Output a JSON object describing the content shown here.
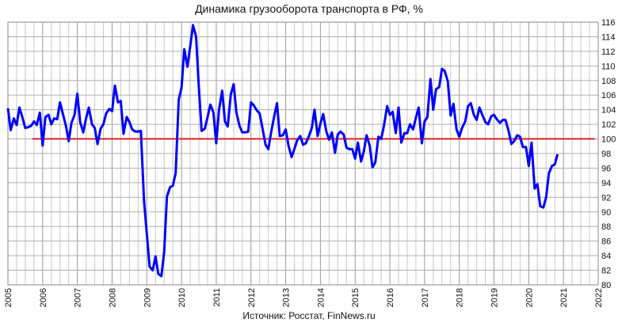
{
  "chart_data": {
    "type": "line",
    "title": "Динамика грузооборота транспорта в РФ, %",
    "source": "Источник: Росстат, FinNews.ru",
    "xlabel": "",
    "ylabel": "",
    "x_ticks": [
      "2005",
      "2006",
      "2007",
      "2008",
      "2009",
      "2010",
      "2011",
      "2012",
      "2013",
      "2014",
      "2015",
      "2016",
      "2017",
      "2018",
      "2019",
      "2020",
      "2021",
      "2022"
    ],
    "y_ticks": [
      80,
      82,
      84,
      86,
      88,
      90,
      92,
      94,
      96,
      98,
      100,
      102,
      104,
      106,
      108,
      110,
      112,
      114,
      116
    ],
    "xlim": [
      2005,
      2022
    ],
    "ylim": [
      80,
      116
    ],
    "grid": true,
    "reference_line": {
      "y": 100,
      "x_start": 2005.7,
      "x_end": 2021.9,
      "color": "#e02020"
    },
    "series": [
      {
        "color": "#0000ff",
        "points": [
          [
            2005.0,
            104.2
          ],
          [
            2005.08,
            101.2
          ],
          [
            2005.17,
            102.8
          ],
          [
            2005.25,
            101.9
          ],
          [
            2005.33,
            104.3
          ],
          [
            2005.42,
            102.9
          ],
          [
            2005.5,
            101.5
          ],
          [
            2005.58,
            101.6
          ],
          [
            2005.67,
            101.8
          ],
          [
            2005.75,
            102.4
          ],
          [
            2005.83,
            101.9
          ],
          [
            2005.92,
            103.6
          ],
          [
            2006.0,
            99.1
          ],
          [
            2006.08,
            103.0
          ],
          [
            2006.17,
            103.3
          ],
          [
            2006.25,
            102.0
          ],
          [
            2006.33,
            102.8
          ],
          [
            2006.42,
            102.7
          ],
          [
            2006.5,
            105.0
          ],
          [
            2006.58,
            103.5
          ],
          [
            2006.67,
            101.8
          ],
          [
            2006.75,
            99.7
          ],
          [
            2006.83,
            102.2
          ],
          [
            2006.92,
            103.3
          ],
          [
            2007.0,
            106.2
          ],
          [
            2007.08,
            102.3
          ],
          [
            2007.17,
            100.9
          ],
          [
            2007.25,
            102.8
          ],
          [
            2007.33,
            104.3
          ],
          [
            2007.42,
            102.0
          ],
          [
            2007.5,
            101.5
          ],
          [
            2007.58,
            99.3
          ],
          [
            2007.67,
            101.4
          ],
          [
            2007.75,
            102.0
          ],
          [
            2007.83,
            103.5
          ],
          [
            2007.92,
            104.1
          ],
          [
            2008.0,
            103.8
          ],
          [
            2008.08,
            107.3
          ],
          [
            2008.17,
            105.0
          ],
          [
            2008.25,
            105.2
          ],
          [
            2008.33,
            100.7
          ],
          [
            2008.42,
            103.0
          ],
          [
            2008.5,
            102.3
          ],
          [
            2008.58,
            101.3
          ],
          [
            2008.67,
            101.0
          ],
          [
            2008.75,
            101.0
          ],
          [
            2008.83,
            101.1
          ],
          [
            2008.92,
            91.5
          ],
          [
            2009.0,
            87.0
          ],
          [
            2009.08,
            82.5
          ],
          [
            2009.17,
            82.0
          ],
          [
            2009.25,
            83.9
          ],
          [
            2009.33,
            81.5
          ],
          [
            2009.42,
            81.2
          ],
          [
            2009.5,
            84.5
          ],
          [
            2009.58,
            92.1
          ],
          [
            2009.67,
            93.4
          ],
          [
            2009.75,
            93.6
          ],
          [
            2009.83,
            95.3
          ],
          [
            2009.92,
            105.4
          ],
          [
            2010.0,
            107.0
          ],
          [
            2010.08,
            112.3
          ],
          [
            2010.17,
            109.9
          ],
          [
            2010.25,
            112.7
          ],
          [
            2010.33,
            115.6
          ],
          [
            2010.42,
            114.0
          ],
          [
            2010.5,
            107.0
          ],
          [
            2010.58,
            101.1
          ],
          [
            2010.67,
            101.4
          ],
          [
            2010.75,
            103.0
          ],
          [
            2010.83,
            104.7
          ],
          [
            2010.92,
            103.6
          ],
          [
            2011.0,
            99.4
          ],
          [
            2011.08,
            104.0
          ],
          [
            2011.17,
            106.6
          ],
          [
            2011.25,
            102.4
          ],
          [
            2011.33,
            101.7
          ],
          [
            2011.42,
            106.1
          ],
          [
            2011.5,
            107.5
          ],
          [
            2011.58,
            103.6
          ],
          [
            2011.67,
            101.8
          ],
          [
            2011.75,
            100.9
          ],
          [
            2011.83,
            100.9
          ],
          [
            2011.92,
            101.0
          ],
          [
            2012.0,
            105.0
          ],
          [
            2012.08,
            104.6
          ],
          [
            2012.17,
            103.9
          ],
          [
            2012.25,
            103.5
          ],
          [
            2012.33,
            101.5
          ],
          [
            2012.42,
            99.2
          ],
          [
            2012.5,
            98.6
          ],
          [
            2012.58,
            100.9
          ],
          [
            2012.67,
            103.1
          ],
          [
            2012.75,
            104.9
          ],
          [
            2012.83,
            100.4
          ],
          [
            2012.92,
            100.5
          ],
          [
            2013.0,
            101.3
          ],
          [
            2013.08,
            99.1
          ],
          [
            2013.17,
            97.5
          ],
          [
            2013.25,
            98.6
          ],
          [
            2013.33,
            99.8
          ],
          [
            2013.42,
            100.4
          ],
          [
            2013.5,
            99.2
          ],
          [
            2013.58,
            99.4
          ],
          [
            2013.67,
            100.4
          ],
          [
            2013.75,
            101.5
          ],
          [
            2013.83,
            104.0
          ],
          [
            2013.92,
            100.4
          ],
          [
            2014.0,
            102.1
          ],
          [
            2014.08,
            103.4
          ],
          [
            2014.17,
            101.0
          ],
          [
            2014.25,
            99.9
          ],
          [
            2014.33,
            100.9
          ],
          [
            2014.42,
            98.1
          ],
          [
            2014.5,
            100.6
          ],
          [
            2014.58,
            101.0
          ],
          [
            2014.67,
            100.6
          ],
          [
            2014.75,
            98.8
          ],
          [
            2014.83,
            98.6
          ],
          [
            2014.92,
            98.6
          ],
          [
            2015.0,
            97.3
          ],
          [
            2015.08,
            99.5
          ],
          [
            2015.17,
            96.9
          ],
          [
            2015.25,
            98.3
          ],
          [
            2015.33,
            100.5
          ],
          [
            2015.42,
            99.1
          ],
          [
            2015.5,
            96.1
          ],
          [
            2015.58,
            96.8
          ],
          [
            2015.67,
            100.3
          ],
          [
            2015.75,
            100.0
          ],
          [
            2015.83,
            101.8
          ],
          [
            2015.92,
            104.5
          ],
          [
            2016.0,
            103.3
          ],
          [
            2016.08,
            103.7
          ],
          [
            2016.17,
            100.8
          ],
          [
            2016.25,
            104.3
          ],
          [
            2016.33,
            99.5
          ],
          [
            2016.42,
            100.8
          ],
          [
            2016.5,
            100.8
          ],
          [
            2016.58,
            102.0
          ],
          [
            2016.67,
            101.3
          ],
          [
            2016.75,
            102.9
          ],
          [
            2016.83,
            104.3
          ],
          [
            2016.92,
            99.4
          ],
          [
            2017.0,
            102.4
          ],
          [
            2017.08,
            103.0
          ],
          [
            2017.17,
            108.2
          ],
          [
            2017.25,
            104.0
          ],
          [
            2017.33,
            106.8
          ],
          [
            2017.42,
            107.1
          ],
          [
            2017.5,
            109.6
          ],
          [
            2017.58,
            109.3
          ],
          [
            2017.67,
            107.9
          ],
          [
            2017.75,
            103.2
          ],
          [
            2017.83,
            104.8
          ],
          [
            2017.92,
            101.3
          ],
          [
            2018.0,
            100.3
          ],
          [
            2018.08,
            101.5
          ],
          [
            2018.17,
            102.4
          ],
          [
            2018.25,
            104.5
          ],
          [
            2018.33,
            104.9
          ],
          [
            2018.42,
            103.3
          ],
          [
            2018.5,
            102.6
          ],
          [
            2018.58,
            104.3
          ],
          [
            2018.67,
            103.2
          ],
          [
            2018.75,
            102.3
          ],
          [
            2018.83,
            102.0
          ],
          [
            2018.92,
            103.1
          ],
          [
            2019.0,
            103.3
          ],
          [
            2019.08,
            102.7
          ],
          [
            2019.17,
            102.2
          ],
          [
            2019.25,
            102.6
          ],
          [
            2019.33,
            102.6
          ],
          [
            2019.42,
            101.1
          ],
          [
            2019.5,
            99.3
          ],
          [
            2019.58,
            99.7
          ],
          [
            2019.67,
            100.5
          ],
          [
            2019.75,
            100.3
          ],
          [
            2019.83,
            98.9
          ],
          [
            2019.92,
            98.9
          ],
          [
            2020.0,
            96.3
          ],
          [
            2020.08,
            99.5
          ],
          [
            2020.17,
            93.2
          ],
          [
            2020.25,
            93.8
          ],
          [
            2020.33,
            90.8
          ],
          [
            2020.42,
            90.6
          ],
          [
            2020.5,
            92.0
          ],
          [
            2020.58,
            95.3
          ],
          [
            2020.67,
            96.3
          ],
          [
            2020.75,
            96.5
          ],
          [
            2020.83,
            97.9
          ]
        ]
      }
    ]
  }
}
